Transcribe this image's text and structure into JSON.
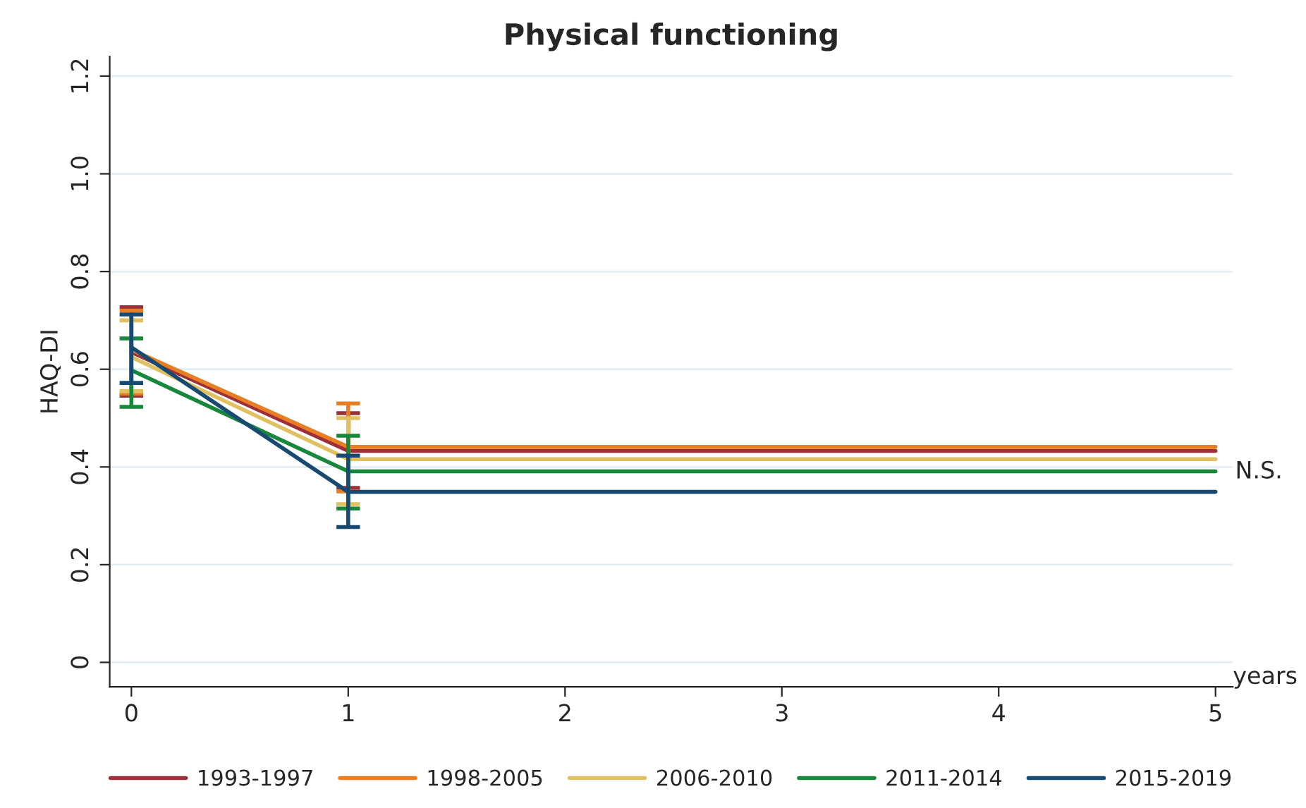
{
  "chart_data": {
    "type": "line",
    "title": "Physical functioning",
    "xlabel": "years",
    "ylabel": "HAQ-DI",
    "x": [
      0,
      1,
      5
    ],
    "series": [
      {
        "name": "1993-1997",
        "color": "#9b2f3a",
        "values": [
          0.635,
          0.433,
          0.433
        ],
        "errors": [
          [
            0.546,
            0.727
          ],
          [
            0.357,
            0.51
          ],
          null
        ]
      },
      {
        "name": "1998-2005",
        "color": "#e87d22",
        "values": [
          0.64,
          0.441,
          0.441
        ],
        "errors": [
          [
            0.55,
            0.72
          ],
          [
            0.35,
            0.53
          ],
          null
        ]
      },
      {
        "name": "2006-2010",
        "color": "#e0c060",
        "values": [
          0.625,
          0.416,
          0.416
        ],
        "errors": [
          [
            0.555,
            0.7
          ],
          [
            0.324,
            0.5
          ],
          null
        ]
      },
      {
        "name": "2011-2014",
        "color": "#17873c",
        "values": [
          0.598,
          0.391,
          0.391
        ],
        "errors": [
          [
            0.523,
            0.663
          ],
          [
            0.315,
            0.464
          ],
          null
        ]
      },
      {
        "name": "2015-2019",
        "color": "#174a73",
        "values": [
          0.645,
          0.349,
          0.349
        ],
        "errors": [
          [
            0.572,
            0.712
          ],
          [
            0.277,
            0.423
          ],
          null
        ]
      }
    ],
    "xlim": [
      -0.1,
      5.08
    ],
    "ylim": [
      -0.05,
      1.24
    ],
    "xticks": [
      0,
      1,
      2,
      3,
      4,
      5
    ],
    "yticks": [
      0,
      0.2,
      0.4,
      0.6,
      0.8,
      {
        "value": 1,
        "label": "1.0"
      },
      1.2
    ],
    "annotations": [
      {
        "text": "N.S.",
        "x": 5,
        "y": 0.39
      }
    ],
    "grid": "y",
    "legend": "bottom",
    "marker": "none",
    "line_style": "solid"
  }
}
